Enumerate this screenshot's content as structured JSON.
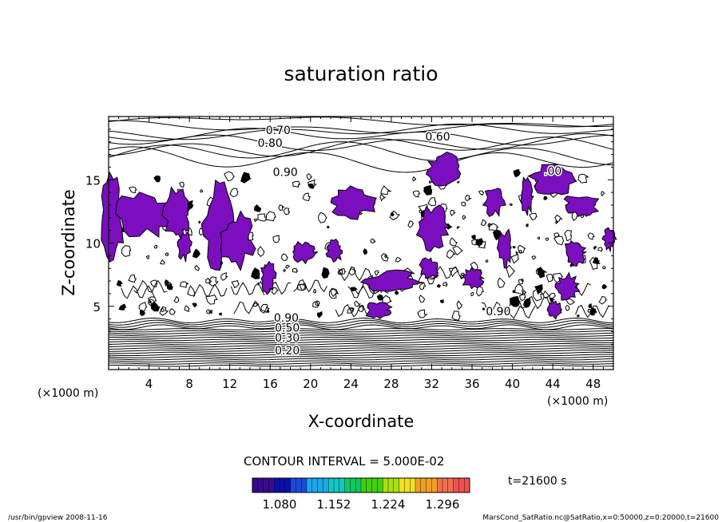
{
  "chart_data": {
    "type": "contour",
    "title": "saturation ratio",
    "xlabel": "X-coordinate",
    "ylabel": "Z-coordinate",
    "x_unit_left": "(×1000 m)",
    "x_unit_right": "(×1000 m)",
    "xlim": [
      0,
      50
    ],
    "ylim": [
      0,
      20
    ],
    "x_ticks": [
      4,
      8,
      12,
      16,
      20,
      24,
      28,
      32,
      36,
      40,
      44,
      48
    ],
    "y_ticks": [
      5,
      10,
      15
    ],
    "contour_interval_text": "CONTOUR INTERVAL = 5.000E-02",
    "contour_labels": [
      {
        "text": "0.70",
        "x": 16.8,
        "y": 18.6
      },
      {
        "text": "0.80",
        "x": 16.0,
        "y": 17.6
      },
      {
        "text": "0.60",
        "x": 32.6,
        "y": 18.1
      },
      {
        "text": "0.90",
        "x": 17.5,
        "y": 15.3
      },
      {
        "text": ".00",
        "x": 44.0,
        "y": 15.4
      },
      {
        "text": "0.90",
        "x": 38.6,
        "y": 4.3
      },
      {
        "text": "0.90",
        "x": 17.6,
        "y": 3.8
      },
      {
        "text": "0.50",
        "x": 17.7,
        "y": 3.0
      },
      {
        "text": "0.30",
        "x": 17.7,
        "y": 2.2
      },
      {
        "text": "0.20",
        "x": 17.7,
        "y": 1.2
      }
    ],
    "fill_threshold": 1.0,
    "fill_color": "#7B0FBF",
    "colorbar": {
      "colors": [
        "#3b0a8f",
        "#0a0fb0",
        "#1a4ad8",
        "#1aa8e8",
        "#10c8c0",
        "#10c860",
        "#40d010",
        "#a8e010",
        "#f0e020",
        "#f0a020",
        "#f07050",
        "#f05050"
      ],
      "labels": [
        "1.080",
        "1.152",
        "1.224",
        "1.296"
      ],
      "values": [
        1.08,
        1.152,
        1.224,
        1.296
      ]
    },
    "purple_regions": [
      {
        "x": 0.3,
        "y": 12.0,
        "rx": 1.2,
        "ry": 3.2
      },
      {
        "x": 3.5,
        "y": 12.3,
        "rx": 3.0,
        "ry": 1.7
      },
      {
        "x": 6.8,
        "y": 12.2,
        "rx": 1.3,
        "ry": 2.2
      },
      {
        "x": 7.5,
        "y": 9.8,
        "rx": 0.8,
        "ry": 1.1
      },
      {
        "x": 10.8,
        "y": 11.5,
        "rx": 1.4,
        "ry": 3.2
      },
      {
        "x": 12.8,
        "y": 10.2,
        "rx": 1.6,
        "ry": 2.0
      },
      {
        "x": 15.8,
        "y": 7.2,
        "rx": 0.7,
        "ry": 1.3
      },
      {
        "x": 19.3,
        "y": 9.3,
        "rx": 1.2,
        "ry": 0.8
      },
      {
        "x": 24.3,
        "y": 13.2,
        "rx": 2.2,
        "ry": 1.2
      },
      {
        "x": 22.4,
        "y": 9.4,
        "rx": 0.8,
        "ry": 0.8
      },
      {
        "x": 28.0,
        "y": 6.9,
        "rx": 2.8,
        "ry": 0.9
      },
      {
        "x": 32.1,
        "y": 11.2,
        "rx": 1.4,
        "ry": 1.7
      },
      {
        "x": 33.2,
        "y": 15.8,
        "rx": 1.8,
        "ry": 1.2
      },
      {
        "x": 31.8,
        "y": 8.0,
        "rx": 0.9,
        "ry": 0.8
      },
      {
        "x": 26.7,
        "y": 4.7,
        "rx": 1.2,
        "ry": 0.7
      },
      {
        "x": 36.1,
        "y": 7.2,
        "rx": 1.0,
        "ry": 0.8
      },
      {
        "x": 38.2,
        "y": 13.4,
        "rx": 1.0,
        "ry": 1.2
      },
      {
        "x": 39.3,
        "y": 9.6,
        "rx": 0.7,
        "ry": 1.4
      },
      {
        "x": 44.0,
        "y": 14.9,
        "rx": 2.2,
        "ry": 1.2
      },
      {
        "x": 46.8,
        "y": 13.0,
        "rx": 1.8,
        "ry": 0.8
      },
      {
        "x": 46.2,
        "y": 9.3,
        "rx": 1.0,
        "ry": 1.0
      },
      {
        "x": 49.6,
        "y": 10.3,
        "rx": 0.6,
        "ry": 0.8
      },
      {
        "x": 45.4,
        "y": 6.5,
        "rx": 1.2,
        "ry": 1.0
      },
      {
        "x": 44.2,
        "y": 4.7,
        "rx": 0.7,
        "ry": 0.7
      },
      {
        "x": 41.4,
        "y": 13.7,
        "rx": 0.6,
        "ry": 1.4
      }
    ]
  },
  "annotations": {
    "time": "t=21600 s",
    "footer_left": "/usr/bin/gpview   2008-11-16",
    "footer_right": "MarsCond_SatRatio.nc@SatRatio,x=0:50000,z=0:20000,t=21600"
  }
}
